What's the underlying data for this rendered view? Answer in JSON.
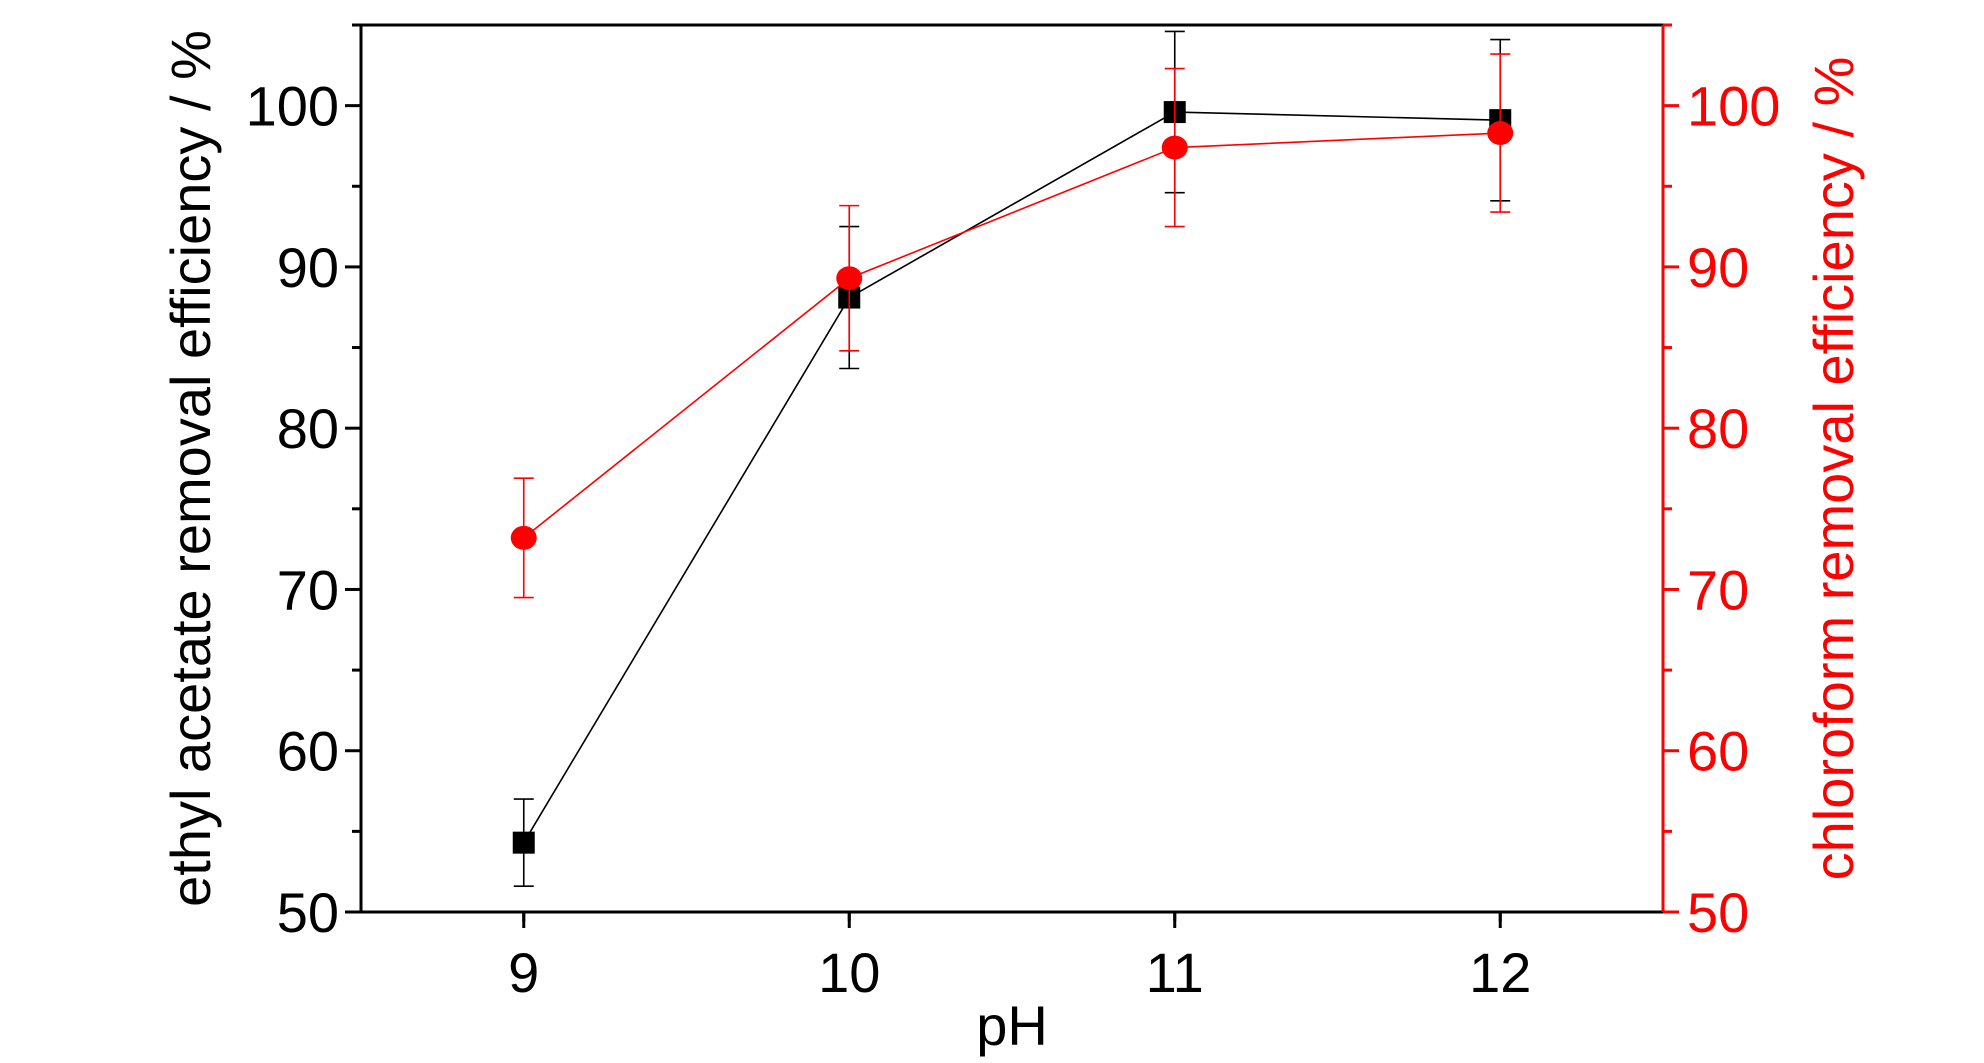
{
  "chart_data": {
    "type": "line",
    "xlabel": "pH",
    "ylabel_left": "ethyl acetate removal efficiency / %",
    "ylabel_right": "chloroform removal efficiency / %",
    "xlim": [
      8.5,
      12.5
    ],
    "ylim_left": [
      50,
      105
    ],
    "ylim_right": [
      50,
      105
    ],
    "x_ticks": [
      9,
      10,
      11,
      12
    ],
    "y_ticks_left": [
      50,
      60,
      70,
      80,
      90,
      100
    ],
    "y_ticks_right": [
      50,
      60,
      70,
      80,
      90,
      100
    ],
    "grid": false,
    "series": [
      {
        "axis": "left",
        "color": "#000000",
        "marker": "square",
        "x": [
          9,
          10,
          11,
          12
        ],
        "values": [
          54.3,
          88.1,
          99.6,
          99.1
        ],
        "error": [
          2.7,
          4.4,
          5.0,
          5.0
        ]
      },
      {
        "axis": "right",
        "color": "#ff0000",
        "marker": "circle",
        "x": [
          9,
          10,
          11,
          12
        ],
        "values": [
          73.2,
          89.3,
          97.4,
          98.3
        ],
        "error": [
          3.7,
          4.5,
          4.9,
          4.9
        ]
      }
    ]
  }
}
